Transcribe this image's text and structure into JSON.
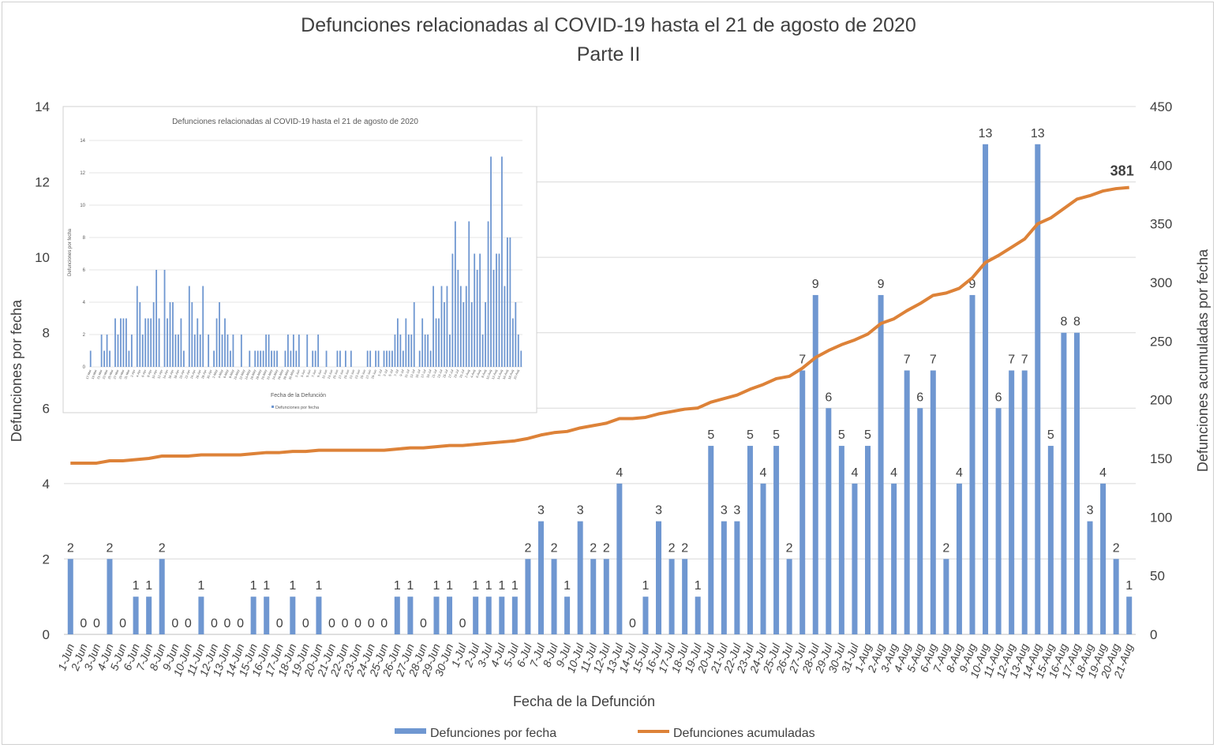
{
  "chart_data": [
    {
      "type": "bar+line",
      "title": "Defunciones relacionadas al COVID-19 hasta el 21 de agosto de 2020",
      "subtitle": "Parte II",
      "xlabel": "Fecha de la Defunción",
      "ylabel": "Defunciones por fecha",
      "y2label": "Defunciones acumuladas por fecha",
      "ylim": [
        0,
        14
      ],
      "yticks": [
        0,
        2,
        4,
        6,
        8,
        10,
        12,
        14
      ],
      "y2lim": [
        0,
        450
      ],
      "y2ticks": [
        0,
        50,
        100,
        150,
        200,
        250,
        300,
        350,
        400,
        450
      ],
      "grid": true,
      "legend_position": "bottom",
      "categories": [
        "1-Jun",
        "2-Jun",
        "3-Jun",
        "4-Jun",
        "5-Jun",
        "6-Jun",
        "7-Jun",
        "8-Jun",
        "9-Jun",
        "10-Jun",
        "11-Jun",
        "12-Jun",
        "13-Jun",
        "14-Jun",
        "15-Jun",
        "16-Jun",
        "17-Jun",
        "18-Jun",
        "19-Jun",
        "20-Jun",
        "21-Jun",
        "22-Jun",
        "23-Jun",
        "24-Jun",
        "25-Jun",
        "26-Jun",
        "27-Jun",
        "28-Jun",
        "29-Jun",
        "30-Jun",
        "1-Jul",
        "2-Jul",
        "3-Jul",
        "4-Jul",
        "5-Jul",
        "6-Jul",
        "7-Jul",
        "8-Jul",
        "9-Jul",
        "10-Jul",
        "11-Jul",
        "12-Jul",
        "13-Jul",
        "14-Jul",
        "15-Jul",
        "16-Jul",
        "17-Jul",
        "18-Jul",
        "19-Jul",
        "20-Jul",
        "21-Jul",
        "22-Jul",
        "23-Jul",
        "24-Jul",
        "25-Jul",
        "26-Jul",
        "27-Jul",
        "28-Jul",
        "29-Jul",
        "30-Jul",
        "31-Jul",
        "1-Aug",
        "2-Aug",
        "3-Aug",
        "4-Aug",
        "5-Aug",
        "6-Aug",
        "7-Aug",
        "8-Aug",
        "9-Aug",
        "10-Aug",
        "11-Aug",
        "12-Aug",
        "13-Aug",
        "14-Aug",
        "15-Aug",
        "16-Aug",
        "17-Aug",
        "18-Aug",
        "19-Aug",
        "20-Aug",
        "21-Aug"
      ],
      "series": [
        {
          "name": "Defunciones por fecha",
          "type": "bar",
          "axis": "left",
          "color": "#6f97d1",
          "values": [
            2,
            0,
            0,
            2,
            0,
            1,
            1,
            2,
            0,
            0,
            1,
            0,
            0,
            0,
            1,
            1,
            0,
            1,
            0,
            1,
            0,
            0,
            0,
            0,
            0,
            1,
            1,
            0,
            1,
            1,
            0,
            1,
            1,
            1,
            1,
            2,
            3,
            2,
            1,
            3,
            2,
            2,
            4,
            0,
            1,
            3,
            2,
            2,
            1,
            5,
            3,
            3,
            5,
            4,
            5,
            2,
            7,
            9,
            6,
            5,
            4,
            5,
            9,
            4,
            7,
            6,
            7,
            2,
            4,
            9,
            13,
            6,
            7,
            7,
            13,
            5,
            8,
            8,
            3,
            4,
            2,
            1
          ]
        },
        {
          "name": "Defunciones acumuladas",
          "type": "line",
          "axis": "right",
          "color": "#dd8238",
          "values": [
            146,
            146,
            146,
            148,
            148,
            149,
            150,
            152,
            152,
            152,
            153,
            153,
            153,
            153,
            154,
            155,
            155,
            156,
            156,
            157,
            157,
            157,
            157,
            157,
            157,
            158,
            159,
            159,
            160,
            161,
            161,
            162,
            163,
            164,
            165,
            167,
            170,
            172,
            173,
            176,
            178,
            180,
            184,
            184,
            185,
            188,
            190,
            192,
            193,
            198,
            201,
            204,
            209,
            213,
            218,
            220,
            227,
            236,
            242,
            247,
            251,
            256,
            265,
            269,
            276,
            282,
            289,
            291,
            295,
            304,
            317,
            323,
            330,
            337,
            350,
            355,
            363,
            371,
            374,
            378,
            380,
            381
          ]
        }
      ],
      "final_annotation": "381"
    },
    {
      "type": "bar",
      "title": "Defunciones relacionadas al COVID-19 hasta el 21 de agosto de 2020",
      "xlabel": "Fecha de la Defunción",
      "ylabel": "Defunciones por fecha",
      "ylim": [
        0,
        14
      ],
      "yticks": [
        0,
        2,
        4,
        6,
        8,
        10,
        12,
        14
      ],
      "legend": "Defunciones por fecha",
      "start_date": "17-Mar",
      "values_pre_june": [
        1,
        0,
        0,
        0,
        2,
        1,
        2,
        1,
        0,
        3,
        2,
        3,
        3,
        3,
        1,
        2,
        0,
        5,
        4,
        2,
        3,
        3,
        3,
        4,
        6,
        3,
        0,
        6,
        3,
        4,
        4,
        2,
        2,
        3,
        1,
        0,
        5,
        4,
        2,
        3,
        2,
        5,
        0,
        2,
        0,
        1,
        3,
        4,
        2,
        3,
        2,
        1,
        2,
        0,
        0,
        2,
        0,
        0,
        1,
        0,
        1,
        1,
        1,
        1,
        2,
        2,
        1,
        1,
        1,
        0,
        0,
        1,
        2,
        1,
        2,
        1
      ]
    }
  ]
}
